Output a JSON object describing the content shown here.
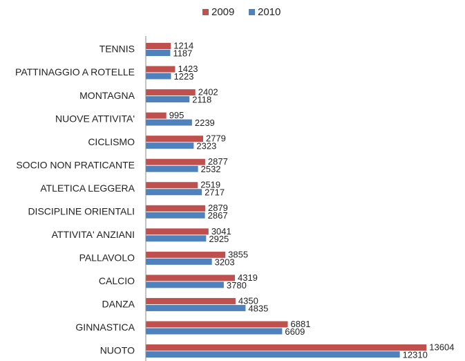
{
  "chart_data": {
    "type": "hbar",
    "categories": [
      "TENNIS",
      "PATTINAGGIO A ROTELLE",
      "MONTAGNA",
      "NUOVE ATTIVITA'",
      "CICLISMO",
      "SOCIO NON PRATICANTE",
      "ATLETICA LEGGERA",
      "DISCIPLINE ORIENTALI",
      "ATTIVITA' ANZIANI",
      "PALLAVOLO",
      "CALCIO",
      "DANZA",
      "GINNASTICA",
      "NUOTO"
    ],
    "series": [
      {
        "name": "2009",
        "color": "#c0504d",
        "values": [
          1214,
          1423,
          2402,
          995,
          2779,
          2877,
          2519,
          2879,
          3041,
          3855,
          4319,
          4350,
          6881,
          13604
        ]
      },
      {
        "name": "2010",
        "color": "#4f81bd",
        "values": [
          1187,
          1223,
          2118,
          2239,
          2323,
          2532,
          2717,
          2867,
          2925,
          3203,
          3780,
          4835,
          6609,
          12310
        ]
      }
    ],
    "xlim": [
      0,
      15000
    ],
    "legend": "top"
  }
}
